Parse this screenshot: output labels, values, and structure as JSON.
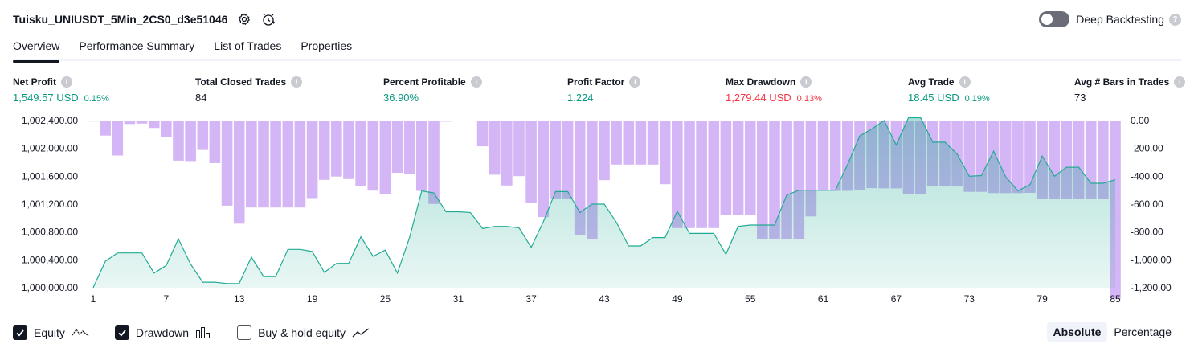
{
  "header": {
    "title": "Tuisku_UNIUSDT_5Min_2CS0_d3e51046",
    "deep_backtesting_label": "Deep Backtesting",
    "deep_backtesting_enabled": false
  },
  "tabs": [
    {
      "label": "Overview",
      "active": true
    },
    {
      "label": "Performance Summary",
      "active": false
    },
    {
      "label": "List of Trades",
      "active": false
    },
    {
      "label": "Properties",
      "active": false
    }
  ],
  "stats": {
    "net_profit": {
      "label": "Net Profit",
      "value": "1,549.57 USD",
      "pct": "0.15%"
    },
    "total_closed_trades": {
      "label": "Total Closed Trades",
      "value": "84"
    },
    "percent_profitable": {
      "label": "Percent Profitable",
      "value": "36.90%"
    },
    "profit_factor": {
      "label": "Profit Factor",
      "value": "1.224"
    },
    "max_drawdown": {
      "label": "Max Drawdown",
      "value": "1,279.44 USD",
      "pct": "0.13%"
    },
    "avg_trade": {
      "label": "Avg Trade",
      "value": "18.45 USD",
      "pct": "0.19%"
    },
    "avg_bars": {
      "label": "Avg # Bars in Trades",
      "value": "73"
    }
  },
  "legend": {
    "equity": {
      "label": "Equity",
      "checked": true
    },
    "drawdown": {
      "label": "Drawdown",
      "checked": true
    },
    "buy_hold": {
      "label": "Buy & hold equity",
      "checked": false
    }
  },
  "mode": {
    "absolute": "Absolute",
    "percentage": "Percentage",
    "selected": "Absolute"
  },
  "colors": {
    "green": "#089981",
    "red": "#f23645",
    "equity_line": "#22ab94",
    "drawdown_bar": "#d4b5f5"
  },
  "chart_data": {
    "type": "area",
    "x_ticks": [
      "1",
      "7",
      "13",
      "19",
      "25",
      "31",
      "37",
      "43",
      "49",
      "55",
      "61",
      "67",
      "73",
      "79",
      "85"
    ],
    "left_ticks": [
      "1,002,400.00",
      "1,002,000.00",
      "1,001,600.00",
      "1,001,200.00",
      "1,000,800.00",
      "1,000,400.00",
      "1,000,000.00"
    ],
    "right_ticks": [
      "0.00",
      "-200.00",
      "-400.00",
      "-600.00",
      "-800.00",
      "-1,000.00",
      "-1,200.00"
    ],
    "equity_ylim": [
      1000000,
      1002400
    ],
    "drawdown_ylim": [
      -1200,
      0
    ],
    "series": [
      {
        "name": "Equity",
        "x": [
          1,
          2,
          3,
          4,
          5,
          6,
          7,
          8,
          9,
          10,
          11,
          12,
          13,
          14,
          15,
          16,
          17,
          18,
          19,
          20,
          21,
          22,
          23,
          24,
          25,
          26,
          27,
          28,
          29,
          30,
          31,
          32,
          33,
          34,
          35,
          36,
          37,
          38,
          39,
          40,
          41,
          42,
          43,
          44,
          45,
          46,
          47,
          48,
          49,
          50,
          51,
          52,
          53,
          54,
          55,
          56,
          57,
          58,
          59,
          60,
          61,
          62,
          63,
          64,
          65,
          66,
          67,
          68,
          69,
          70,
          71,
          72,
          73,
          74,
          75,
          76,
          77,
          78,
          79,
          80,
          81,
          82,
          83,
          84,
          85
        ],
        "values": [
          1000000,
          1000380,
          1000500,
          1000500,
          1000500,
          1000210,
          1000320,
          1000700,
          1000340,
          1000080,
          1000080,
          1000060,
          1000060,
          1000440,
          1000160,
          1000160,
          1000550,
          1000550,
          1000520,
          1000220,
          1000350,
          1000350,
          1000730,
          1000450,
          1000540,
          1000210,
          1000720,
          1001390,
          1001360,
          1001090,
          1001090,
          1001080,
          1000850,
          1000880,
          1000880,
          1000860,
          1000580,
          1000950,
          1001380,
          1001380,
          1001080,
          1001200,
          1001200,
          1000940,
          1000600,
          1000600,
          1000720,
          1000720,
          1001100,
          1000780,
          1000780,
          1000780,
          1000480,
          1000880,
          1000900,
          1000900,
          1000900,
          1001330,
          1001400,
          1001400,
          1001400,
          1001400,
          1001770,
          1002180,
          1002280,
          1002400,
          1002050,
          1002440,
          1002440,
          1002090,
          1002090,
          1001920,
          1001600,
          1001610,
          1001960,
          1001590,
          1001390,
          1001480,
          1001890,
          1001600,
          1001730,
          1001730,
          1001500,
          1001500,
          1001550
        ]
      },
      {
        "name": "Drawdown",
        "x": [
          1,
          2,
          3,
          4,
          5,
          6,
          7,
          8,
          9,
          10,
          11,
          12,
          13,
          14,
          15,
          16,
          17,
          18,
          19,
          20,
          21,
          22,
          23,
          24,
          25,
          26,
          27,
          28,
          29,
          30,
          31,
          32,
          33,
          34,
          35,
          36,
          37,
          38,
          39,
          40,
          41,
          42,
          43,
          44,
          45,
          46,
          47,
          48,
          49,
          50,
          51,
          52,
          53,
          54,
          55,
          56,
          57,
          58,
          59,
          60,
          61,
          62,
          63,
          64,
          65,
          66,
          67,
          68,
          69,
          70,
          71,
          72,
          73,
          74,
          75,
          76,
          77,
          78,
          79,
          80,
          81,
          82,
          83,
          84,
          85
        ],
        "values": [
          -7,
          -108,
          -251,
          -25,
          -22,
          -53,
          -120,
          -288,
          -291,
          -211,
          -306,
          -611,
          -740,
          -624,
          -624,
          -624,
          -624,
          -624,
          -557,
          -426,
          -402,
          -420,
          -471,
          -503,
          -525,
          -375,
          -383,
          -505,
          -599,
          -8,
          -4,
          -2,
          -185,
          -389,
          -466,
          -399,
          -593,
          -693,
          -559,
          -559,
          -819,
          -853,
          -428,
          -316,
          -316,
          -316,
          -316,
          -457,
          -772,
          -772,
          -772,
          -772,
          -676,
          -676,
          -676,
          -852,
          -852,
          -852,
          -852,
          -688,
          -505,
          -505,
          -505,
          -502,
          -485,
          -487,
          -487,
          -525,
          -525,
          -471,
          -471,
          -471,
          -512,
          -512,
          -521,
          -521,
          -521,
          -519,
          -561,
          -561,
          -561,
          -561,
          -561,
          -561,
          -1279
        ]
      }
    ]
  }
}
